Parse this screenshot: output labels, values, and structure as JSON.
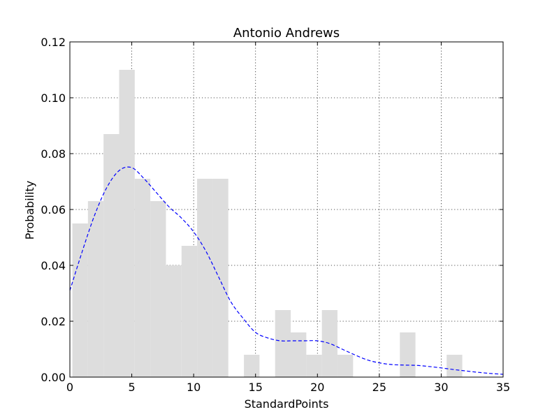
{
  "chart_data": {
    "type": "bar",
    "title": "Antonio Andrews",
    "xlabel": "StandardPoints",
    "ylabel": "Probability",
    "xlim": [
      0,
      35
    ],
    "ylim": [
      0,
      0.12
    ],
    "xticks": [
      0,
      5,
      10,
      15,
      20,
      25,
      30,
      35
    ],
    "yticks": [
      0.0,
      0.02,
      0.04,
      0.06,
      0.08,
      0.1,
      0.12
    ],
    "grid": true,
    "colors": {
      "bar": "#dddddd",
      "kde": "#0000ff"
    },
    "histogram": {
      "bin_edges": [
        0.2,
        1.46,
        2.72,
        3.98,
        5.24,
        6.5,
        7.76,
        9.02,
        10.28,
        11.54,
        12.8,
        14.06,
        15.32,
        16.58,
        17.84,
        19.1,
        20.36,
        21.62,
        22.88,
        24.14,
        25.4,
        26.66,
        27.92,
        29.18,
        30.44,
        31.7,
        32.96,
        34.22
      ],
      "values": [
        0.055,
        0.063,
        0.087,
        0.11,
        0.071,
        0.063,
        0.04,
        0.047,
        0.071,
        0.071,
        0.0,
        0.008,
        0.0,
        0.024,
        0.016,
        0.008,
        0.024,
        0.008,
        0.0,
        0.0,
        0.0,
        0.016,
        0.0,
        0.0,
        0.008,
        0.0,
        0.0
      ]
    },
    "series": [
      {
        "style": "dashed",
        "x": [
          0,
          1,
          2,
          3,
          4,
          5,
          6,
          7,
          8,
          9,
          10,
          11,
          12,
          13,
          14,
          15,
          16,
          17,
          18,
          19,
          20,
          21,
          22,
          23,
          24,
          25,
          26,
          27,
          28,
          29,
          30,
          31,
          32,
          33,
          34,
          35
        ],
        "y": [
          0.031,
          0.045,
          0.058,
          0.068,
          0.074,
          0.075,
          0.071,
          0.066,
          0.061,
          0.057,
          0.052,
          0.045,
          0.036,
          0.027,
          0.021,
          0.016,
          0.014,
          0.013,
          0.013,
          0.013,
          0.013,
          0.012,
          0.01,
          0.008,
          0.0062,
          0.0051,
          0.0045,
          0.0043,
          0.0042,
          0.0038,
          0.0033,
          0.0027,
          0.0022,
          0.0017,
          0.0013,
          0.001
        ]
      }
    ]
  }
}
